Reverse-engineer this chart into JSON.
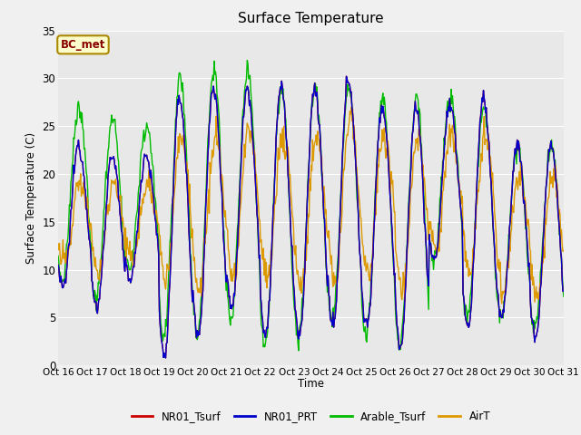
{
  "title": "Surface Temperature",
  "ylabel": "Surface Temperature (C)",
  "xlabel": "Time",
  "ylim": [
    0,
    35
  ],
  "bg_color": "#e8e8e8",
  "fig_color": "#f0f0f0",
  "annotation_text": "BC_met",
  "annotation_facecolor": "#ffffcc",
  "annotation_edgecolor": "#aa8800",
  "annotation_textcolor": "#880000",
  "series_colors": {
    "NR01_Tsurf": "#cc0000",
    "NR01_PRT": "#0000cc",
    "Arable_Tsurf": "#00bb00",
    "AirT": "#dd9900"
  },
  "x_tick_labels": [
    "Oct 16",
    "Oct 17",
    "Oct 18",
    "Oct 19",
    "Oct 20",
    "Oct 21",
    "Oct 22",
    "Oct 23",
    "Oct 24",
    "Oct 25",
    "Oct 26",
    "Oct 27",
    "Oct 28",
    "Oct 29",
    "Oct 30",
    "Oct 31"
  ],
  "n_days": 15,
  "pts_per_day": 48,
  "peak_temps_red": [
    23,
    22,
    22,
    28,
    29,
    29,
    29,
    29,
    30,
    27,
    27,
    27,
    28,
    23,
    23
  ],
  "min_temps_red": [
    8,
    6,
    9,
    1,
    3,
    6,
    3,
    3,
    4,
    4,
    2,
    11,
    4,
    5,
    3
  ],
  "peak_temps_green": [
    27,
    26,
    25,
    30,
    31,
    31,
    29,
    29,
    29,
    28,
    28,
    28,
    27,
    23,
    23
  ],
  "min_temps_green": [
    9,
    7,
    10,
    3,
    3,
    5,
    2,
    3,
    5,
    3,
    2,
    11,
    5,
    5,
    4
  ],
  "peak_temps_orange": [
    19,
    19,
    19,
    24,
    24,
    25,
    24,
    24,
    26,
    24,
    24,
    24,
    24,
    20,
    20
  ],
  "min_temps_orange": [
    11,
    10,
    11,
    9,
    8,
    9,
    9,
    8,
    9,
    10,
    8,
    12,
    10,
    8,
    7
  ]
}
